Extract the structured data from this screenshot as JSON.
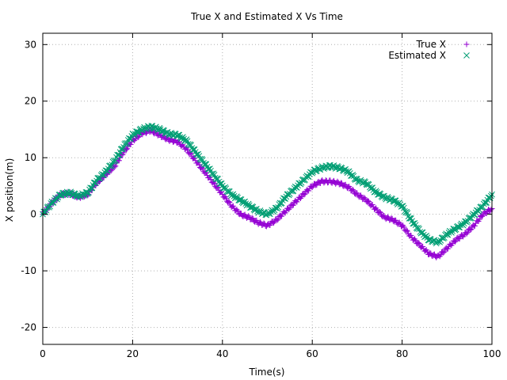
{
  "chart_data": {
    "type": "scatter",
    "title": "True X and Estimated X Vs Time",
    "xlabel": "Time(s)",
    "ylabel": "X position(m)",
    "xlim": [
      0,
      100
    ],
    "ylim": [
      -23,
      32
    ],
    "xticks": [
      0,
      20,
      40,
      60,
      80,
      100
    ],
    "yticks": [
      -20,
      -10,
      0,
      10,
      20,
      30
    ],
    "grid": true,
    "legend_position": "top-right",
    "series": [
      {
        "name": "True X",
        "marker": "plus",
        "color": "#9400d3",
        "x": [
          0,
          2,
          4,
          6,
          8,
          10,
          12,
          14,
          16,
          18,
          20,
          22,
          24,
          26,
          28,
          30,
          32,
          34,
          36,
          38,
          40,
          42,
          44,
          46,
          48,
          50,
          52,
          54,
          56,
          58,
          60,
          62,
          64,
          66,
          68,
          70,
          72,
          74,
          76,
          78,
          80,
          82,
          84,
          86,
          88,
          90,
          92,
          94,
          96,
          98,
          100
        ],
        "y": [
          0.0,
          2.0,
          3.5,
          3.7,
          3.0,
          3.5,
          5.5,
          7.0,
          8.5,
          11.0,
          13.0,
          14.3,
          14.8,
          14.0,
          13.2,
          12.8,
          11.5,
          9.5,
          7.5,
          5.5,
          3.5,
          1.5,
          0.0,
          -0.6,
          -1.5,
          -2.0,
          -1.0,
          0.5,
          2.0,
          3.5,
          5.0,
          5.8,
          5.8,
          5.5,
          4.8,
          3.5,
          2.5,
          1.0,
          -0.5,
          -1.0,
          -2.0,
          -4.0,
          -5.5,
          -7.0,
          -7.5,
          -6.0,
          -4.5,
          -3.5,
          -2.0,
          0.0,
          1.0
        ]
      },
      {
        "name": "Estimated X",
        "marker": "cross",
        "color": "#009e73",
        "x": [
          0,
          2,
          4,
          6,
          8,
          10,
          12,
          14,
          16,
          18,
          20,
          22,
          24,
          26,
          28,
          30,
          32,
          34,
          36,
          38,
          40,
          42,
          44,
          46,
          48,
          50,
          52,
          54,
          56,
          58,
          60,
          62,
          64,
          66,
          68,
          70,
          72,
          74,
          76,
          78,
          80,
          82,
          84,
          86,
          88,
          90,
          92,
          94,
          96,
          98,
          100
        ],
        "y": [
          0.0,
          2.0,
          3.5,
          3.8,
          3.2,
          3.8,
          6.0,
          7.5,
          9.5,
          12.0,
          14.0,
          15.0,
          15.5,
          15.0,
          14.2,
          14.0,
          13.0,
          11.0,
          9.0,
          7.0,
          5.0,
          3.5,
          2.5,
          1.5,
          0.5,
          0.0,
          1.0,
          3.0,
          4.5,
          6.0,
          7.5,
          8.2,
          8.5,
          8.2,
          7.5,
          6.0,
          5.5,
          4.0,
          3.0,
          2.5,
          1.5,
          -1.0,
          -3.0,
          -4.5,
          -5.0,
          -3.5,
          -2.5,
          -1.5,
          0.0,
          1.5,
          3.5
        ]
      }
    ]
  }
}
